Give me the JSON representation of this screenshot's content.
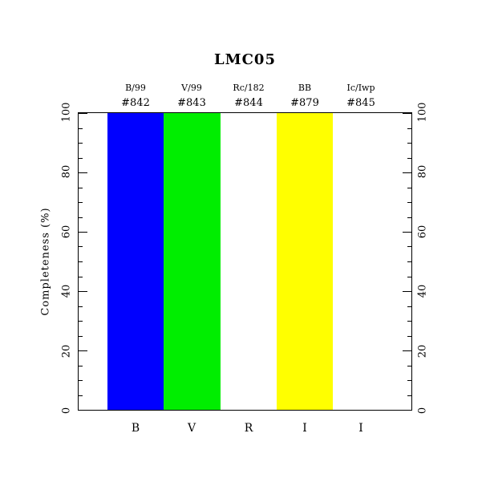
{
  "chart_data": {
    "type": "bar",
    "title": "LMC05",
    "ylabel": "Completeness (%)",
    "xlabel": "",
    "ylim": [
      0,
      100
    ],
    "yticks": [
      0,
      20,
      40,
      60,
      80,
      100
    ],
    "minor_tick_step": 5,
    "grid": false,
    "legend": null,
    "categories": [
      "B",
      "V",
      "R",
      "I",
      "I"
    ],
    "values": [
      100,
      100,
      null,
      100,
      null
    ],
    "bar_colors": [
      "#0000ff",
      "#00ee00",
      "#ffffff",
      "#ffff00",
      "#ffffff"
    ],
    "column_headers": [
      {
        "filter": "B/99",
        "count": "#842"
      },
      {
        "filter": "V/99",
        "count": "#843"
      },
      {
        "filter": "Rc/182",
        "count": "#844"
      },
      {
        "filter": "BB",
        "count": "#879"
      },
      {
        "filter": "Ic/Iwp",
        "count": "#845"
      }
    ]
  }
}
